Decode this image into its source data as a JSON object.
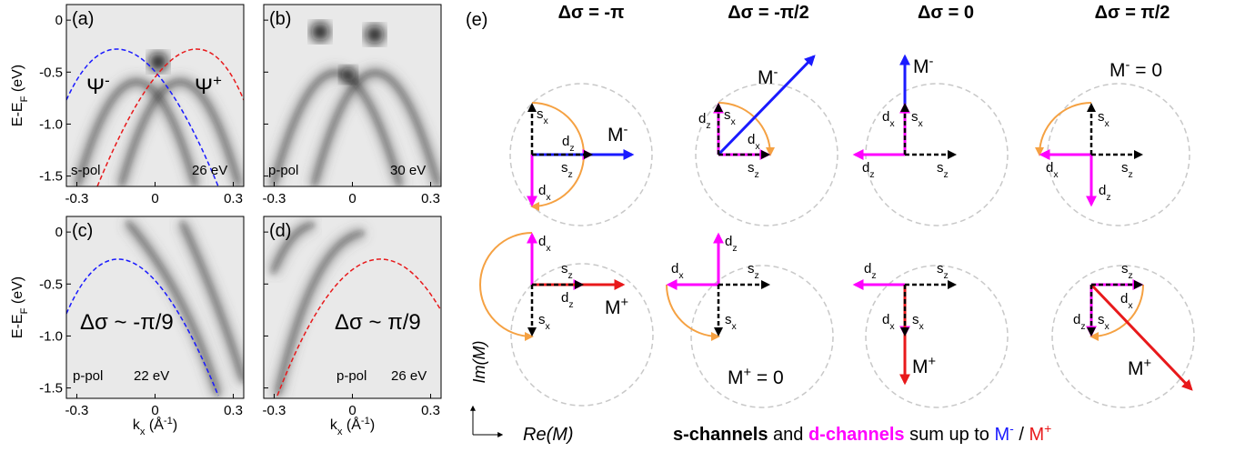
{
  "arpes": {
    "xlim": [
      -0.34,
      0.34
    ],
    "ylim": [
      -1.6,
      0.15
    ],
    "xticks": [
      -0.3,
      0,
      0.3
    ],
    "yticks": [
      0,
      -0.5,
      {
        "value": -1,
        "label": "-1.0"
      },
      -1.5
    ],
    "ylabel": [
      {
        "text": "E-E"
      },
      {
        "text": "F",
        "pos": "sub"
      },
      {
        "text": " (eV)"
      }
    ],
    "xlabel": [
      {
        "text": "k"
      },
      {
        "text": "x",
        "pos": "sub"
      },
      {
        "text": " (Å"
      },
      {
        "text": "-1",
        "pos": "sup"
      },
      {
        "text": ")"
      }
    ],
    "panels": [
      {
        "letter": "(a)",
        "annotations": [
          {
            "color": "#1a1aff",
            "parts": [
              {
                "text": "Ψ"
              },
              {
                "text": "-",
                "pos": "sup"
              }
            ]
          },
          {
            "color": "#e8191b",
            "parts": [
              {
                "text": "Ψ"
              },
              {
                "text": "+",
                "pos": "sup"
              }
            ]
          },
          {
            "color": "#000000",
            "parts": [
              {
                "text": "s-pol"
              }
            ]
          },
          {
            "color": "#000000",
            "parts": [
              {
                "text": "26 eV"
              }
            ]
          }
        ]
      },
      {
        "letter": "(b)",
        "annotations": [
          {
            "color": "#000000",
            "parts": [
              {
                "text": "p-pol"
              }
            ]
          },
          {
            "color": "#000000",
            "parts": [
              {
                "text": "30 eV"
              }
            ]
          }
        ]
      },
      {
        "letter": "(c)",
        "annotations": [
          {
            "color": "#1a1aff",
            "parts": [
              {
                "text": "Δσ ~ -π/9"
              }
            ]
          },
          {
            "color": "#000000",
            "parts": [
              {
                "text": "p-pol"
              }
            ]
          },
          {
            "color": "#000000",
            "parts": [
              {
                "text": "22 eV"
              }
            ]
          }
        ]
      },
      {
        "letter": "(d)",
        "annotations": [
          {
            "color": "#e8191b",
            "parts": [
              {
                "text": "Δσ ~  π/9"
              }
            ]
          },
          {
            "color": "#000000",
            "parts": [
              {
                "text": "p-pol"
              }
            ]
          },
          {
            "color": "#000000",
            "parts": [
              {
                "text": "26 eV"
              }
            ]
          }
        ]
      }
    ]
  },
  "panel_e": {
    "letter": "(e)",
    "columns": [
      "Δσ = -π",
      "Δσ = -π/2",
      "Δσ = 0",
      "Δσ = π/2"
    ],
    "cells": [
      [
        {
          "color": "#000000",
          "parts": [
            {
              "text": "s"
            },
            {
              "text": "x",
              "pos": "sub"
            }
          ]
        },
        {
          "color": "#1a1aff",
          "parts": [
            {
              "text": "M"
            },
            {
              "text": "-",
              "pos": "sup"
            }
          ]
        },
        {
          "color": "#ff00ff",
          "parts": [
            {
              "text": "d"
            },
            {
              "text": "z",
              "pos": "sub"
            }
          ]
        },
        {
          "color": "#000000",
          "parts": [
            {
              "text": "s"
            },
            {
              "text": "z",
              "pos": "sub"
            }
          ]
        },
        {
          "color": "#ff00ff",
          "parts": [
            {
              "text": "d"
            },
            {
              "text": "x",
              "pos": "sub"
            }
          ]
        }
      ],
      [
        {
          "color": "#1a1aff",
          "parts": [
            {
              "text": "M"
            },
            {
              "text": "-",
              "pos": "sup"
            }
          ]
        },
        {
          "color": "#ff00ff",
          "parts": [
            {
              "text": "d"
            },
            {
              "text": "z",
              "pos": "sub"
            }
          ]
        },
        {
          "color": "#000000",
          "parts": [
            {
              "text": "s"
            },
            {
              "text": "x",
              "pos": "sub"
            }
          ]
        },
        {
          "color": "#ff00ff",
          "parts": [
            {
              "text": "d"
            },
            {
              "text": "x",
              "pos": "sub"
            }
          ]
        },
        {
          "color": "#000000",
          "parts": [
            {
              "text": "s"
            },
            {
              "text": "z",
              "pos": "sub"
            }
          ]
        }
      ],
      [
        {
          "color": "#1a1aff",
          "parts": [
            {
              "text": "M"
            },
            {
              "text": "-",
              "pos": "sup"
            }
          ]
        },
        {
          "color": "#ff00ff",
          "parts": [
            {
              "text": "d"
            },
            {
              "text": "x",
              "pos": "sub"
            }
          ]
        },
        {
          "color": "#000000",
          "parts": [
            {
              "text": "s"
            },
            {
              "text": "x",
              "pos": "sub"
            }
          ]
        },
        {
          "color": "#ff00ff",
          "parts": [
            {
              "text": "d"
            },
            {
              "text": "z",
              "pos": "sub"
            }
          ]
        },
        {
          "color": "#000000",
          "parts": [
            {
              "text": "s"
            },
            {
              "text": "z",
              "pos": "sub"
            }
          ]
        }
      ],
      [
        {
          "color": "#1a1aff",
          "parts": [
            {
              "text": "M"
            },
            {
              "text": "-",
              "pos": "sup"
            },
            {
              "text": " = 0"
            }
          ]
        },
        {
          "color": "#000000",
          "parts": [
            {
              "text": "s"
            },
            {
              "text": "x",
              "pos": "sub"
            }
          ]
        },
        {
          "color": "#ff00ff",
          "parts": [
            {
              "text": "d"
            },
            {
              "text": "x",
              "pos": "sub"
            }
          ]
        },
        {
          "color": "#ff00ff",
          "parts": [
            {
              "text": "d"
            },
            {
              "text": "z",
              "pos": "sub"
            }
          ]
        },
        {
          "color": "#000000",
          "parts": [
            {
              "text": "s"
            },
            {
              "text": "z",
              "pos": "sub"
            }
          ]
        }
      ],
      [
        {
          "color": "#ff00ff",
          "parts": [
            {
              "text": "d"
            },
            {
              "text": "x",
              "pos": "sub"
            }
          ]
        },
        {
          "color": "#000000",
          "parts": [
            {
              "text": "s"
            },
            {
              "text": "z",
              "pos": "sub"
            }
          ]
        },
        {
          "color": "#ff00ff",
          "parts": [
            {
              "text": "d"
            },
            {
              "text": "z",
              "pos": "sub"
            }
          ]
        },
        {
          "color": "#e8191b",
          "parts": [
            {
              "text": "M"
            },
            {
              "text": "+",
              "pos": "sup"
            }
          ]
        },
        {
          "color": "#000000",
          "parts": [
            {
              "text": "s"
            },
            {
              "text": "x",
              "pos": "sub"
            }
          ]
        }
      ],
      [
        {
          "color": "#ff00ff",
          "parts": [
            {
              "text": "d"
            },
            {
              "text": "z",
              "pos": "sub"
            }
          ]
        },
        {
          "color": "#ff00ff",
          "parts": [
            {
              "text": "d"
            },
            {
              "text": "x",
              "pos": "sub"
            }
          ]
        },
        {
          "color": "#000000",
          "parts": [
            {
              "text": "s"
            },
            {
              "text": "z",
              "pos": "sub"
            }
          ]
        },
        {
          "color": "#000000",
          "parts": [
            {
              "text": "s"
            },
            {
              "text": "x",
              "pos": "sub"
            }
          ]
        },
        {
          "color": "#e8191b",
          "parts": [
            {
              "text": "M"
            },
            {
              "text": "+",
              "pos": "sup"
            },
            {
              "text": " = 0"
            }
          ]
        }
      ],
      [
        {
          "color": "#ff00ff",
          "parts": [
            {
              "text": "d"
            },
            {
              "text": "z",
              "pos": "sub"
            }
          ]
        },
        {
          "color": "#000000",
          "parts": [
            {
              "text": "s"
            },
            {
              "text": "z",
              "pos": "sub"
            }
          ]
        },
        {
          "color": "#ff00ff",
          "parts": [
            {
              "text": "d"
            },
            {
              "text": "x",
              "pos": "sub"
            }
          ]
        },
        {
          "color": "#000000",
          "parts": [
            {
              "text": "s"
            },
            {
              "text": "x",
              "pos": "sub"
            }
          ]
        },
        {
          "color": "#e8191b",
          "parts": [
            {
              "text": "M"
            },
            {
              "text": "+",
              "pos": "sup"
            }
          ]
        }
      ],
      [
        {
          "color": "#000000",
          "parts": [
            {
              "text": "s"
            },
            {
              "text": "z",
              "pos": "sub"
            }
          ]
        },
        {
          "color": "#ff00ff",
          "parts": [
            {
              "text": "d"
            },
            {
              "text": "x",
              "pos": "sub"
            }
          ]
        },
        {
          "color": "#ff00ff",
          "parts": [
            {
              "text": "d"
            },
            {
              "text": "z",
              "pos": "sub"
            }
          ]
        },
        {
          "color": "#000000",
          "parts": [
            {
              "text": "s"
            },
            {
              "text": "x",
              "pos": "sub"
            }
          ]
        },
        {
          "color": "#e8191b",
          "parts": [
            {
              "text": "M"
            },
            {
              "text": "+",
              "pos": "sup"
            }
          ]
        }
      ]
    ],
    "y_axis": "Im(M)",
    "x_axis": "Re(M)",
    "caption": [
      {
        "text": "s-channels",
        "weight": "bold"
      },
      {
        "text": " and "
      },
      {
        "text": "d-channels",
        "weight": "bold",
        "color": "#ff00ff"
      },
      {
        "text": " sum up to "
      },
      {
        "text": "M",
        "color": "#1a1aff"
      },
      {
        "text": "-",
        "pos": "sup",
        "color": "#1a1aff"
      },
      {
        "text": " / "
      },
      {
        "text": "M",
        "color": "#e8191b"
      },
      {
        "text": "+",
        "pos": "sup",
        "color": "#e8191b"
      }
    ]
  }
}
